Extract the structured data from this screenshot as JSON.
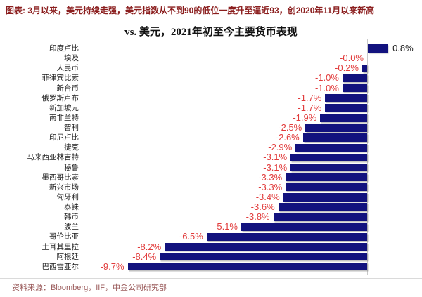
{
  "page": {
    "header": "图表: 3月以来，美元持续走强，美元指数从不到90的低位一度升至逼近93，创2020年11月以来新高",
    "title": "vs. 美元，2021年初至今主要货币表现",
    "source": "资料来源：Bloomberg，IIF，中金公司研究部"
  },
  "colors": {
    "bar": "#12127e",
    "negative_label": "#e13b3b",
    "positive_label": "#1a1a1a",
    "header_text": "#8b1e1e",
    "source_text": "#9b5c5c",
    "axis_line": "#c9c9c9"
  },
  "chart_data": {
    "type": "bar",
    "orientation": "horizontal",
    "title": "vs. 美元，2021年初至今主要货币表现",
    "unit": "%",
    "xlim": [
      -10.5,
      1.5
    ],
    "grid": false,
    "legend": "none",
    "zero_axis_line": true,
    "categories": [
      "印度卢比",
      "埃及",
      "人民币",
      "菲律宾比索",
      "新台币",
      "俄罗斯卢布",
      "新加坡元",
      "南非兰特",
      "智利",
      "印尼卢比",
      "捷克",
      "马来西亚林吉特",
      "秘鲁",
      "墨西哥比索",
      "新兴市场",
      "匈牙利",
      "泰铢",
      "韩币",
      "波兰",
      "哥伦比亚",
      "土耳其里拉",
      "阿根廷",
      "巴西雷亚尔"
    ],
    "values": [
      0.8,
      -0.0,
      -0.2,
      -1.0,
      -1.0,
      -1.7,
      -1.7,
      -1.9,
      -2.5,
      -2.6,
      -2.9,
      -3.1,
      -3.1,
      -3.3,
      -3.3,
      -3.4,
      -3.6,
      -3.8,
      -5.1,
      -6.5,
      -8.2,
      -8.4,
      -9.7
    ],
    "labels": [
      "0.8%",
      "-0.0%",
      "-0.2%",
      "-1.0%",
      "-1.0%",
      "-1.7%",
      "-1.7%",
      "-1.9%",
      "-2.5%",
      "-2.6%",
      "-2.9%",
      "-3.1%",
      "-3.1%",
      "-3.3%",
      "-3.3%",
      "-3.4%",
      "-3.6%",
      "-3.8%",
      "-5.1%",
      "-6.5%",
      "-8.2%",
      "-8.4%",
      "-9.7%"
    ]
  }
}
